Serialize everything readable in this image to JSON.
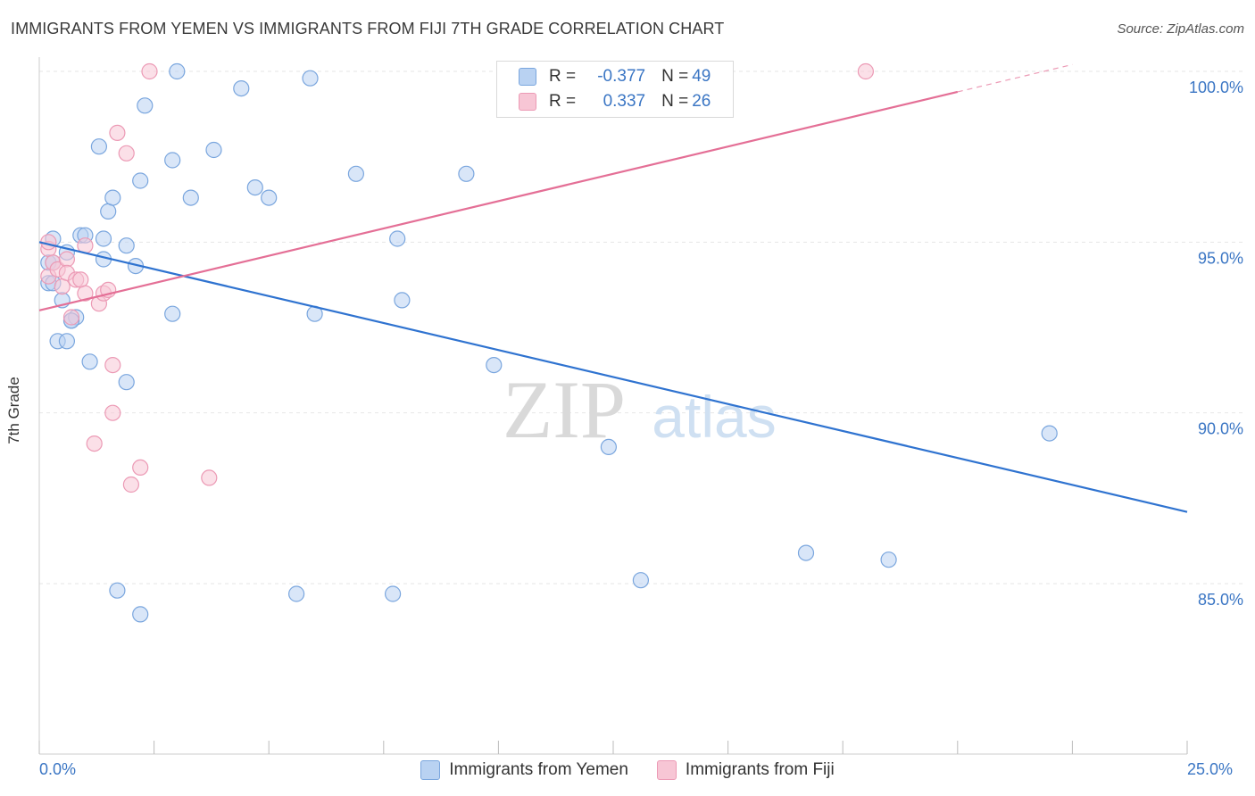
{
  "title": "IMMIGRANTS FROM YEMEN VS IMMIGRANTS FROM FIJI 7TH GRADE CORRELATION CHART",
  "source": "Source: ZipAtlas.com",
  "watermark": {
    "zip": "ZIP",
    "atlas": "atlas"
  },
  "legend": {
    "r_label": "R =",
    "n_label": "N =",
    "rows": [
      {
        "name": "Immigrants from Yemen",
        "r": "-0.377",
        "n": "49"
      },
      {
        "name": "Immigrants from Fiji",
        "r": "0.337",
        "n": "26"
      }
    ]
  },
  "colors": {
    "yemen_fill": "#b9d2f2",
    "yemen_stroke": "#7aa6de",
    "yemen_line": "#2f73d0",
    "fiji_fill": "#f7c6d5",
    "fiji_stroke": "#ec9ab5",
    "fiji_line": "#e46f96",
    "tick_text": "#3b76c4"
  },
  "chart_data": {
    "type": "scatter",
    "title": "IMMIGRANTS FROM YEMEN VS IMMIGRANTS FROM FIJI 7TH GRADE CORRELATION CHART",
    "xlabel": "",
    "ylabel": "7th Grade",
    "xlim": [
      0,
      25
    ],
    "ylim": [
      80.5,
      100.5
    ],
    "x_tick_labels": [
      "0.0%",
      "25.0%"
    ],
    "y_ticks": [
      100,
      95,
      90,
      85
    ],
    "y_tick_labels": [
      "100.0%",
      "95.0%",
      "90.0%",
      "85.0%"
    ],
    "grid": true,
    "series": [
      {
        "name": "Immigrants from Yemen",
        "color": "#b9d2f2",
        "points": [
          [
            0.2,
            93.8
          ],
          [
            0.2,
            94.4
          ],
          [
            0.3,
            94.4
          ],
          [
            0.3,
            95.1
          ],
          [
            0.4,
            92.1
          ],
          [
            0.5,
            93.3
          ],
          [
            0.6,
            92.1
          ],
          [
            0.6,
            94.7
          ],
          [
            0.7,
            92.7
          ],
          [
            0.8,
            92.8
          ],
          [
            0.9,
            95.2
          ],
          [
            1.0,
            95.2
          ],
          [
            1.1,
            91.5
          ],
          [
            1.3,
            97.8
          ],
          [
            1.4,
            94.5
          ],
          [
            1.4,
            95.1
          ],
          [
            1.5,
            95.9
          ],
          [
            1.6,
            96.3
          ],
          [
            1.7,
            84.8
          ],
          [
            1.9,
            90.9
          ],
          [
            1.9,
            94.9
          ],
          [
            2.1,
            94.3
          ],
          [
            2.2,
            84.1
          ],
          [
            2.2,
            96.8
          ],
          [
            2.3,
            99.0
          ],
          [
            2.9,
            97.4
          ],
          [
            2.9,
            92.9
          ],
          [
            3.0,
            100.0
          ],
          [
            3.3,
            96.3
          ],
          [
            3.8,
            97.7
          ],
          [
            4.4,
            99.5
          ],
          [
            4.7,
            96.6
          ],
          [
            5.0,
            96.3
          ],
          [
            5.6,
            84.7
          ],
          [
            5.9,
            99.8
          ],
          [
            6.0,
            92.9
          ],
          [
            6.9,
            97.0
          ],
          [
            7.7,
            84.7
          ],
          [
            7.8,
            95.1
          ],
          [
            7.9,
            93.3
          ],
          [
            9.3,
            97.0
          ],
          [
            9.9,
            91.4
          ],
          [
            12.4,
            89.0
          ],
          [
            13.1,
            85.1
          ],
          [
            16.7,
            85.9
          ],
          [
            18.5,
            85.7
          ],
          [
            22.0,
            89.4
          ],
          [
            0.3,
            93.8
          ],
          [
            0.7,
            92.7
          ]
        ]
      },
      {
        "name": "Immigrants from Fiji",
        "color": "#f7c6d5",
        "points": [
          [
            0.2,
            94.8
          ],
          [
            0.2,
            95.0
          ],
          [
            0.2,
            94.0
          ],
          [
            0.3,
            94.4
          ],
          [
            0.4,
            94.2
          ],
          [
            0.5,
            93.7
          ],
          [
            0.6,
            94.5
          ],
          [
            0.6,
            94.1
          ],
          [
            0.7,
            92.8
          ],
          [
            0.8,
            93.9
          ],
          [
            0.9,
            93.9
          ],
          [
            1.0,
            93.5
          ],
          [
            1.0,
            94.9
          ],
          [
            1.2,
            89.1
          ],
          [
            1.3,
            93.2
          ],
          [
            1.4,
            93.5
          ],
          [
            1.5,
            93.6
          ],
          [
            1.6,
            90.0
          ],
          [
            1.6,
            91.4
          ],
          [
            1.7,
            98.2
          ],
          [
            1.9,
            97.6
          ],
          [
            2.0,
            87.9
          ],
          [
            2.2,
            88.4
          ],
          [
            2.4,
            100.0
          ],
          [
            3.7,
            88.1
          ],
          [
            18.0,
            100.0
          ]
        ]
      }
    ],
    "trend_lines": [
      {
        "series": "Immigrants from Yemen",
        "x": [
          0,
          25
        ],
        "y": [
          95.0,
          87.1
        ]
      },
      {
        "series": "Immigrants from Fiji",
        "x": [
          0,
          20
        ],
        "y": [
          93.0,
          99.4
        ],
        "dashed_extension_to": [
          22.5,
          100.2
        ]
      }
    ]
  }
}
